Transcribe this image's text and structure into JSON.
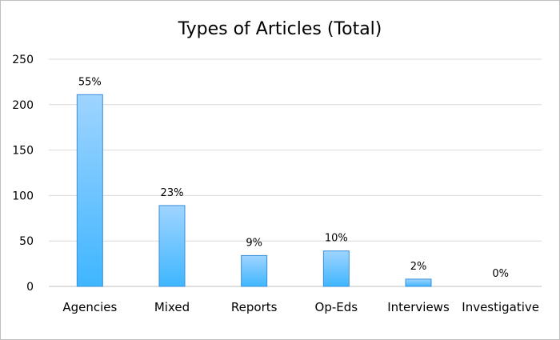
{
  "chart_data": {
    "type": "bar",
    "title": "Types of Articles (Total)",
    "categories": [
      "Agencies",
      "Mixed",
      "Reports",
      "Op-Eds",
      "Interviews",
      "Investigative"
    ],
    "values": [
      211,
      89,
      34,
      39,
      8,
      0
    ],
    "data_labels": [
      "55%",
      "23%",
      "9%",
      "10%",
      "2%",
      "0%"
    ],
    "ylim": [
      0,
      250
    ],
    "yticks": [
      0,
      50,
      100,
      150,
      200,
      250
    ],
    "grid": true,
    "legend": "none",
    "colors": {
      "bar_top": "#9fd4ff",
      "bar_bottom": "#3fb6ff",
      "bar_edge": "#3a8fd8"
    }
  }
}
